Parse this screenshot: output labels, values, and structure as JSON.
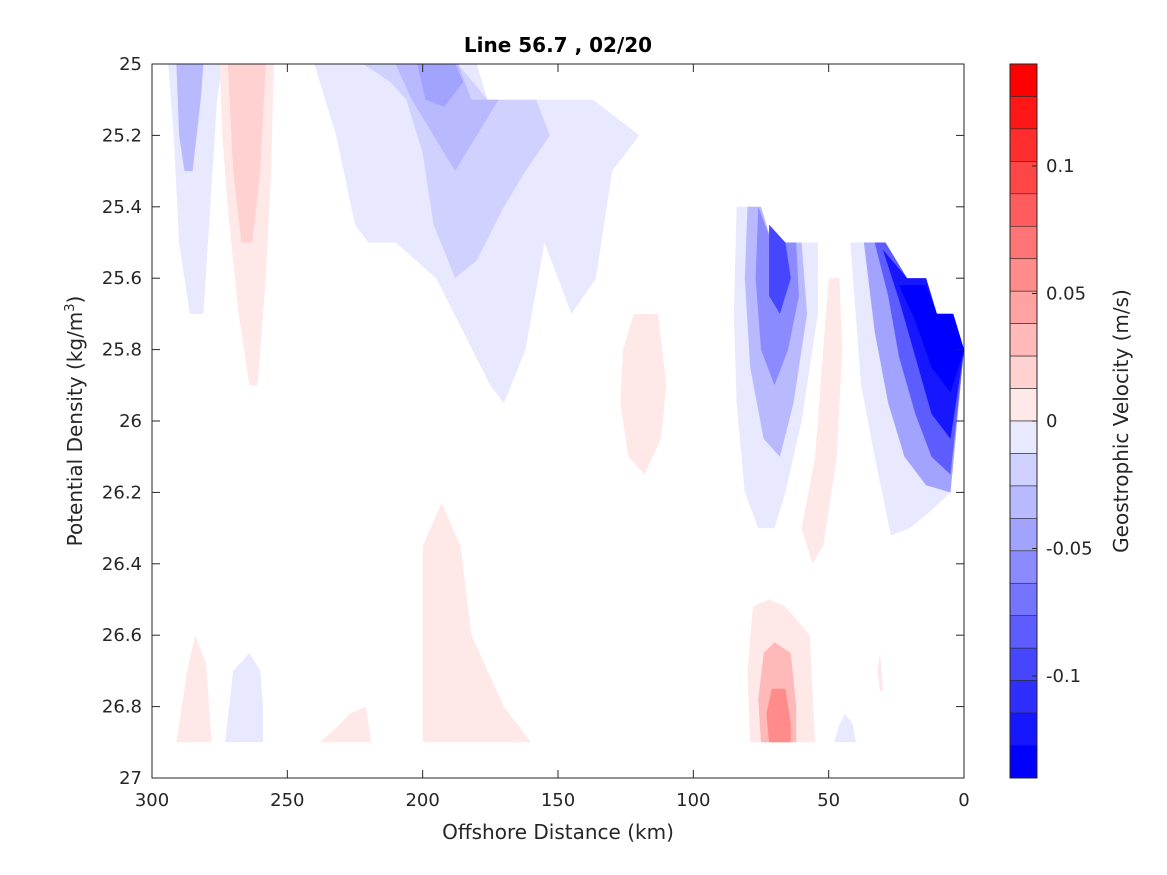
{
  "chart_data": {
    "type": "contour",
    "title": "Line 56.7 , 02/20",
    "xlabel": "Offshore Distance (km)",
    "ylabel_main": "Potential Density (kg/m",
    "ylabel_sup": "3",
    "ylabel_close": ")",
    "colorbar_label": "Geostrophic Velocity (m/s)",
    "xlim": [
      300,
      0
    ],
    "ylim": [
      25,
      27
    ],
    "x_reversed": true,
    "y_reversed": true,
    "xticks": [
      "300",
      "250",
      "200",
      "150",
      "100",
      "50",
      "0"
    ],
    "yticks": [
      "25",
      "25.2",
      "25.4",
      "25.6",
      "25.8",
      "26",
      "26.2",
      "26.4",
      "26.6",
      "26.8",
      "27"
    ],
    "colorbar": {
      "range": [
        -0.14,
        0.14
      ],
      "levels": 22,
      "ticks": [
        "0.1",
        "0.05",
        "0",
        "-0.05",
        "-0.1"
      ],
      "colormap": "blue-white-red",
      "negative_color": "#0000ff",
      "positive_color": "#ff0000"
    },
    "regions": [
      {
        "sign": "neg",
        "level": 1,
        "points": [
          [
            294,
            25
          ],
          [
            274,
            25
          ],
          [
            276,
            25.1
          ],
          [
            281,
            25.7
          ],
          [
            286,
            25.7
          ],
          [
            290,
            25.5
          ],
          [
            292,
            25.2
          ]
        ]
      },
      {
        "sign": "neg",
        "level": 3,
        "points": [
          [
            291,
            25
          ],
          [
            281,
            25
          ],
          [
            282,
            25.1
          ],
          [
            285,
            25.3
          ],
          [
            288,
            25.3
          ],
          [
            290,
            25.2
          ]
        ]
      },
      {
        "sign": "pos",
        "level": 1,
        "points": [
          [
            275,
            25
          ],
          [
            255,
            25
          ],
          [
            256,
            25.3
          ],
          [
            258,
            25.6
          ],
          [
            261,
            25.9
          ],
          [
            264,
            25.9
          ],
          [
            268,
            25.7
          ],
          [
            272,
            25.4
          ],
          [
            274,
            25.2
          ]
        ]
      },
      {
        "sign": "pos",
        "level": 2,
        "points": [
          [
            272,
            25
          ],
          [
            258,
            25
          ],
          [
            260,
            25.3
          ],
          [
            263,
            25.5
          ],
          [
            267,
            25.5
          ],
          [
            270,
            25.3
          ]
        ]
      },
      {
        "sign": "neg",
        "level": 1,
        "points": [
          [
            240,
            25
          ],
          [
            180,
            25
          ],
          [
            176,
            25.1
          ],
          [
            137,
            25.1
          ],
          [
            120,
            25.2
          ],
          [
            130,
            25.3
          ],
          [
            136,
            25.6
          ],
          [
            145,
            25.7
          ],
          [
            155,
            25.5
          ],
          [
            162,
            25.8
          ],
          [
            170,
            25.95
          ],
          [
            175,
            25.9
          ],
          [
            185,
            25.75
          ],
          [
            195,
            25.6
          ],
          [
            210,
            25.5
          ],
          [
            220,
            25.5
          ],
          [
            225,
            25.45
          ],
          [
            232,
            25.2
          ],
          [
            236,
            25.1
          ]
        ]
      },
      {
        "sign": "neg",
        "level": 2,
        "points": [
          [
            222,
            25
          ],
          [
            187,
            25
          ],
          [
            176,
            25.1
          ],
          [
            158,
            25.1
          ],
          [
            153,
            25.2
          ],
          [
            162,
            25.3
          ],
          [
            170,
            25.4
          ],
          [
            180,
            25.55
          ],
          [
            188,
            25.6
          ],
          [
            196,
            25.45
          ],
          [
            200,
            25.25
          ],
          [
            206,
            25.1
          ],
          [
            212,
            25.05
          ]
        ]
      },
      {
        "sign": "neg",
        "level": 3,
        "points": [
          [
            210,
            25
          ],
          [
            187,
            25
          ],
          [
            182,
            25.1
          ],
          [
            172,
            25.1
          ],
          [
            180,
            25.2
          ],
          [
            188,
            25.3
          ],
          [
            196,
            25.2
          ],
          [
            204,
            25.1
          ]
        ]
      },
      {
        "sign": "neg",
        "level": 4,
        "points": [
          [
            202,
            25
          ],
          [
            188,
            25
          ],
          [
            185,
            25.05
          ],
          [
            192,
            25.12
          ],
          [
            199,
            25.1
          ]
        ]
      },
      {
        "sign": "pos",
        "level": 1,
        "points": [
          [
            122,
            25.7
          ],
          [
            113,
            25.7
          ],
          [
            110,
            25.9
          ],
          [
            112,
            26.05
          ],
          [
            118,
            26.15
          ],
          [
            124,
            26.1
          ],
          [
            127,
            25.95
          ],
          [
            126,
            25.8
          ]
        ]
      },
      {
        "sign": "neg",
        "level": 1,
        "points": [
          [
            84,
            25.4
          ],
          [
            77,
            25.4
          ],
          [
            71,
            25.5
          ],
          [
            59,
            25.5
          ],
          [
            54,
            25.5
          ],
          [
            54,
            25.7
          ],
          [
            60,
            26.0
          ],
          [
            66,
            26.2
          ],
          [
            70,
            26.3
          ],
          [
            76,
            26.3
          ],
          [
            81,
            26.2
          ],
          [
            84,
            25.95
          ],
          [
            85,
            25.7
          ]
        ]
      },
      {
        "sign": "neg",
        "level": 3,
        "points": [
          [
            80,
            25.4
          ],
          [
            75,
            25.4
          ],
          [
            71,
            25.5
          ],
          [
            60,
            25.5
          ],
          [
            58,
            25.7
          ],
          [
            63,
            25.95
          ],
          [
            68,
            26.1
          ],
          [
            74,
            26.05
          ],
          [
            79,
            25.85
          ],
          [
            81,
            25.6
          ]
        ]
      },
      {
        "sign": "neg",
        "level": 5,
        "points": [
          [
            76,
            25.4
          ],
          [
            71,
            25.5
          ],
          [
            62,
            25.5
          ],
          [
            61,
            25.65
          ],
          [
            65,
            25.8
          ],
          [
            70,
            25.9
          ],
          [
            75,
            25.8
          ],
          [
            77,
            25.6
          ]
        ]
      },
      {
        "sign": "neg",
        "level": 8,
        "points": [
          [
            72,
            25.45
          ],
          [
            66,
            25.5
          ],
          [
            64,
            25.6
          ],
          [
            68,
            25.7
          ],
          [
            72,
            25.65
          ]
        ]
      },
      {
        "sign": "pos",
        "level": 1,
        "points": [
          [
            50,
            25.6
          ],
          [
            46,
            25.6
          ],
          [
            45,
            25.8
          ],
          [
            47,
            26.1
          ],
          [
            52,
            26.35
          ],
          [
            56,
            26.4
          ],
          [
            60,
            26.3
          ],
          [
            55,
            26.1
          ],
          [
            52,
            25.8
          ]
        ]
      },
      {
        "sign": "neg",
        "level": 1,
        "points": [
          [
            42,
            25.5
          ],
          [
            30,
            25.5
          ],
          [
            21,
            25.6
          ],
          [
            14,
            25.6
          ],
          [
            10,
            25.7
          ],
          [
            4,
            25.7
          ],
          [
            0,
            25.8
          ],
          [
            5,
            26.2
          ],
          [
            12,
            26.25
          ],
          [
            20,
            26.3
          ],
          [
            27,
            26.32
          ],
          [
            33,
            26.1
          ],
          [
            38,
            25.9
          ],
          [
            40,
            25.7
          ]
        ]
      },
      {
        "sign": "neg",
        "level": 4,
        "points": [
          [
            37,
            25.5
          ],
          [
            30,
            25.5
          ],
          [
            21,
            25.6
          ],
          [
            14,
            25.6
          ],
          [
            10,
            25.7
          ],
          [
            4,
            25.7
          ],
          [
            0,
            25.8
          ],
          [
            5,
            26.2
          ],
          [
            14,
            26.18
          ],
          [
            22,
            26.1
          ],
          [
            28,
            25.95
          ],
          [
            33,
            25.75
          ]
        ]
      },
      {
        "sign": "neg",
        "level": 7,
        "points": [
          [
            33,
            25.5
          ],
          [
            29,
            25.5
          ],
          [
            21,
            25.6
          ],
          [
            14,
            25.6
          ],
          [
            10,
            25.7
          ],
          [
            4,
            25.7
          ],
          [
            0,
            25.8
          ],
          [
            5,
            26.15
          ],
          [
            12,
            26.1
          ],
          [
            18,
            25.98
          ],
          [
            24,
            25.82
          ],
          [
            28,
            25.65
          ]
        ]
      },
      {
        "sign": "neg",
        "level": 10,
        "points": [
          [
            30,
            25.52
          ],
          [
            21,
            25.6
          ],
          [
            14,
            25.6
          ],
          [
            10,
            25.7
          ],
          [
            4,
            25.7
          ],
          [
            0,
            25.8
          ],
          [
            5,
            26.05
          ],
          [
            12,
            25.98
          ],
          [
            18,
            25.82
          ],
          [
            24,
            25.66
          ]
        ]
      },
      {
        "sign": "neg",
        "level": 13,
        "points": [
          [
            24,
            25.62
          ],
          [
            14,
            25.62
          ],
          [
            10,
            25.7
          ],
          [
            4,
            25.7
          ],
          [
            0,
            25.8
          ],
          [
            5,
            25.92
          ],
          [
            12,
            25.85
          ],
          [
            18,
            25.72
          ]
        ]
      },
      {
        "sign": "neg",
        "level": 16,
        "points": [
          [
            18,
            25.64
          ],
          [
            14,
            25.64
          ],
          [
            10,
            25.71
          ],
          [
            4,
            25.71
          ],
          [
            1,
            25.79
          ],
          [
            5,
            25.82
          ],
          [
            12,
            25.76
          ]
        ]
      },
      {
        "sign": "pos",
        "level": 1,
        "points": [
          [
            200,
            26.35
          ],
          [
            193,
            26.23
          ],
          [
            186,
            26.35
          ],
          [
            182,
            26.6
          ],
          [
            170,
            26.8
          ],
          [
            160,
            26.9
          ],
          [
            200,
            26.9
          ]
        ]
      },
      {
        "sign": "pos",
        "level": 1,
        "points": [
          [
            78,
            26.52
          ],
          [
            72,
            26.5
          ],
          [
            66,
            26.52
          ],
          [
            57,
            26.6
          ],
          [
            56,
            26.75
          ],
          [
            55,
            26.9
          ],
          [
            79,
            26.9
          ],
          [
            80,
            26.7
          ]
        ]
      },
      {
        "sign": "pos",
        "level": 3,
        "points": [
          [
            74,
            26.65
          ],
          [
            70,
            26.62
          ],
          [
            64,
            26.65
          ],
          [
            62,
            26.8
          ],
          [
            62,
            26.9
          ],
          [
            75,
            26.9
          ],
          [
            76,
            26.78
          ]
        ]
      },
      {
        "sign": "pos",
        "level": 5,
        "points": [
          [
            71,
            26.75
          ],
          [
            66,
            26.75
          ],
          [
            64,
            26.85
          ],
          [
            64,
            26.9
          ],
          [
            72,
            26.9
          ],
          [
            73,
            26.82
          ]
        ]
      },
      {
        "sign": "pos",
        "level": 1,
        "points": [
          [
            284,
            26.6
          ],
          [
            280,
            26.68
          ],
          [
            278,
            26.9
          ],
          [
            291,
            26.9
          ],
          [
            287,
            26.7
          ]
        ]
      },
      {
        "sign": "neg",
        "level": 1,
        "points": [
          [
            264,
            26.65
          ],
          [
            260,
            26.7
          ],
          [
            259,
            26.8
          ],
          [
            259,
            26.9
          ],
          [
            273,
            26.9
          ],
          [
            270,
            26.7
          ]
        ]
      },
      {
        "sign": "pos",
        "level": 1,
        "points": [
          [
            227,
            26.82
          ],
          [
            221,
            26.8
          ],
          [
            219,
            26.9
          ],
          [
            238,
            26.9
          ],
          [
            232,
            26.86
          ]
        ]
      },
      {
        "sign": "neg",
        "level": 1,
        "points": [
          [
            44,
            26.82
          ],
          [
            41,
            26.85
          ],
          [
            40,
            26.9
          ],
          [
            48,
            26.9
          ],
          [
            46,
            26.85
          ]
        ]
      },
      {
        "sign": "pos",
        "level": 1,
        "points": [
          [
            31,
            26.65
          ],
          [
            30,
            26.75
          ],
          [
            31,
            26.76
          ],
          [
            32,
            26.7
          ]
        ]
      }
    ]
  }
}
